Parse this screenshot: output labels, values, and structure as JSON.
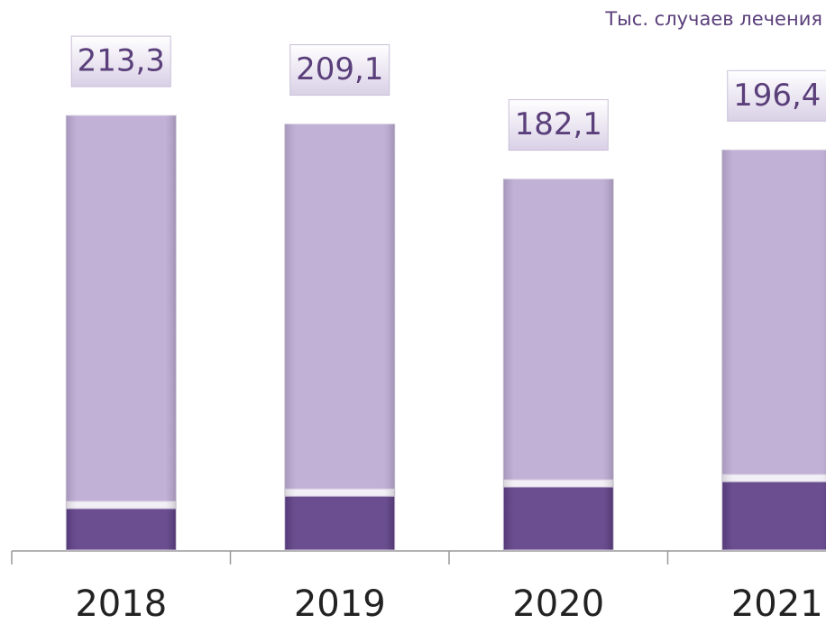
{
  "chart_data": {
    "type": "stacked_bar",
    "unit_label": "Тыс. случаев лечения",
    "categories": [
      "2018",
      "2019",
      "2020",
      "2021"
    ],
    "series": [
      {
        "color": "#5e3f86",
        "values": [
          20.4,
          26.5,
          31.0,
          33.6
        ]
      },
      {
        "color": "#f2eef6",
        "values": [
          3.5,
          3.5,
          3.5,
          3.5
        ]
      },
      {
        "color": "#bcaad3",
        "values": [
          189.4,
          179.1,
          147.6,
          159.3
        ]
      }
    ],
    "totals": {
      "values": [
        213.3,
        209.1,
        182.1,
        196.4
      ],
      "value_labels": [
        "213,3",
        "209,1",
        "182,1",
        "196,4"
      ]
    },
    "ylim": [
      0,
      270
    ]
  }
}
